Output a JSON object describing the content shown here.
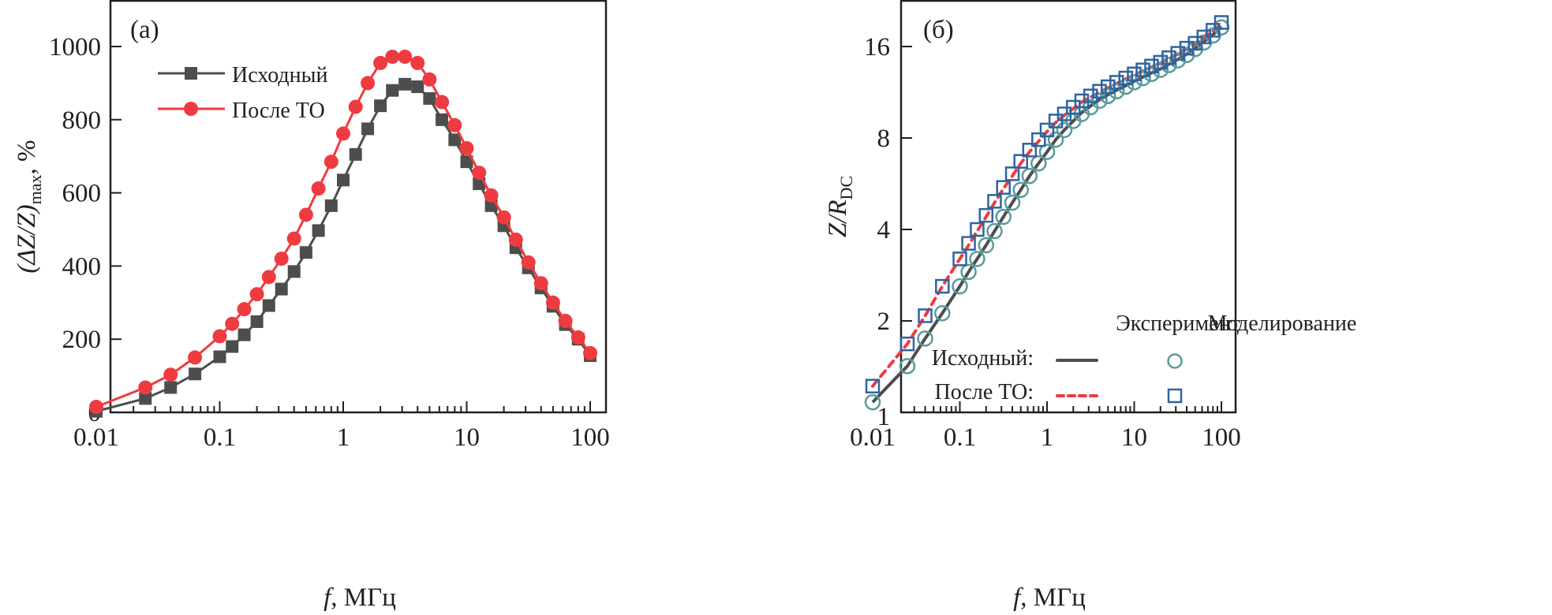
{
  "chart_data": [
    {
      "type": "line",
      "panel_label": "(a)",
      "title": "",
      "xlabel_italic": "f",
      "xlabel_rest": ", МГц",
      "ylabel": "(ΔZ/Z)max, %",
      "ylabel_parts": {
        "main": "(ΔZ/Z)",
        "sub": "max",
        "tail": ", %"
      },
      "xscale": "log",
      "xlim": [
        0.01,
        100
      ],
      "ylim": [
        0,
        1000
      ],
      "xticks": [
        0.01,
        0.1,
        1,
        10,
        100
      ],
      "xtick_labels": [
        "0.01",
        "0.1",
        "1",
        "10",
        "100"
      ],
      "yticks": [
        0,
        200,
        400,
        600,
        800,
        1000
      ],
      "ytick_labels": [
        "0",
        "200",
        "400",
        "600",
        "800",
        "1000"
      ],
      "grid": false,
      "legend_position": "top-left",
      "x": [
        0.01,
        0.025,
        0.04,
        0.063,
        0.1,
        0.126,
        0.158,
        0.2,
        0.25,
        0.316,
        0.4,
        0.5,
        0.63,
        0.8,
        1,
        1.26,
        1.58,
        2,
        2.5,
        3.16,
        4,
        5,
        6.3,
        8,
        10,
        12.6,
        15.8,
        20,
        25,
        31.6,
        40,
        50,
        63,
        80,
        100
      ],
      "series": [
        {
          "name": "Исходный",
          "marker": "square",
          "color": "#4d4d4d",
          "values": [
            3,
            38,
            68,
            105,
            152,
            180,
            212,
            248,
            292,
            337,
            385,
            437,
            497,
            565,
            635,
            705,
            775,
            838,
            880,
            897,
            890,
            858,
            800,
            745,
            685,
            625,
            565,
            510,
            450,
            395,
            340,
            290,
            240,
            200,
            155
          ]
        },
        {
          "name": "После ТО",
          "marker": "circle",
          "color": "#ef3b3f",
          "values": [
            15,
            68,
            103,
            150,
            208,
            242,
            282,
            323,
            370,
            420,
            475,
            540,
            612,
            685,
            762,
            835,
            900,
            955,
            972,
            972,
            955,
            910,
            848,
            785,
            722,
            655,
            593,
            533,
            472,
            410,
            353,
            300,
            250,
            205,
            162
          ]
        }
      ]
    },
    {
      "type": "line",
      "panel_label": "(б)",
      "title": "",
      "xlabel_italic": "f",
      "xlabel_rest": ", МГц",
      "ylabel": "Z/RDC",
      "ylabel_parts": {
        "main": "Z/R",
        "sub": "DC"
      },
      "xscale": "log",
      "yscale": "log2",
      "xlim": [
        0.01,
        100
      ],
      "ylim": [
        1,
        22
      ],
      "xticks": [
        0.01,
        0.1,
        1,
        10,
        100
      ],
      "xtick_labels": [
        "0.01",
        "0.1",
        "1",
        "10",
        "100"
      ],
      "yticks": [
        1,
        2,
        4,
        8,
        16
      ],
      "ytick_labels": [
        "1",
        "2",
        "4",
        "8",
        "16"
      ],
      "grid": false,
      "legend_position": "bottom-right",
      "legend": {
        "col_headers": [
          "Эксперимент",
          "Моделирование"
        ],
        "rows": [
          "Исходный:",
          "После ТО:"
        ]
      },
      "x": [
        0.01,
        0.025,
        0.04,
        0.063,
        0.1,
        0.126,
        0.158,
        0.2,
        0.25,
        0.316,
        0.4,
        0.5,
        0.63,
        0.8,
        1,
        1.26,
        1.58,
        2,
        2.5,
        3.16,
        4,
        5,
        6.3,
        8,
        10,
        12.6,
        15.8,
        20,
        25,
        31.6,
        40,
        50,
        63,
        80,
        100
      ],
      "series": [
        {
          "name": "Исходный: Эксперимент",
          "style": "solid-line",
          "color": "#4d4d4d",
          "values": [
            1.08,
            1.42,
            1.75,
            2.12,
            2.6,
            2.9,
            3.2,
            3.55,
            3.95,
            4.4,
            4.9,
            5.4,
            6.0,
            6.6,
            7.2,
            7.9,
            8.5,
            9.1,
            9.7,
            10.2,
            10.7,
            11.1,
            11.5,
            11.9,
            12.3,
            12.7,
            13.1,
            13.5,
            14.0,
            14.5,
            15.1,
            15.8,
            16.6,
            17.5,
            18.6
          ]
        },
        {
          "name": "После ТО: Эксперимент",
          "style": "dashed-line",
          "color": "#ef3b3f",
          "values": [
            1.22,
            1.68,
            2.08,
            2.6,
            3.2,
            3.55,
            3.95,
            4.4,
            4.9,
            5.45,
            6.0,
            6.6,
            7.2,
            7.8,
            8.4,
            9.0,
            9.5,
            10.0,
            10.5,
            10.9,
            11.3,
            11.7,
            12.1,
            12.5,
            12.9,
            13.3,
            13.7,
            14.1,
            14.6,
            15.1,
            15.7,
            16.3,
            17.1,
            18.0,
            19.0
          ]
        },
        {
          "name": "Исходный: Моделирование",
          "marker": "open-circle",
          "color": "#5a9a9a",
          "values": [
            1.08,
            1.42,
            1.75,
            2.12,
            2.6,
            2.9,
            3.2,
            3.55,
            3.95,
            4.4,
            4.9,
            5.4,
            6.0,
            6.6,
            7.2,
            7.9,
            8.5,
            9.1,
            9.6,
            10.1,
            10.6,
            11.0,
            11.4,
            11.8,
            12.2,
            12.6,
            13.0,
            13.4,
            13.9,
            14.4,
            15.0,
            15.7,
            16.5,
            17.4,
            18.5
          ]
        },
        {
          "name": "После ТО: Моделирование",
          "marker": "open-square",
          "color": "#2e64a0",
          "values": [
            1.22,
            1.68,
            2.08,
            2.6,
            3.2,
            3.6,
            4.0,
            4.45,
            4.95,
            5.5,
            6.1,
            6.7,
            7.3,
            7.9,
            8.5,
            9.1,
            9.6,
            10.1,
            10.6,
            11.0,
            11.4,
            11.8,
            12.2,
            12.6,
            13.0,
            13.4,
            13.8,
            14.2,
            14.7,
            15.2,
            15.8,
            16.4,
            17.2,
            18.1,
            19.2
          ]
        }
      ]
    }
  ]
}
